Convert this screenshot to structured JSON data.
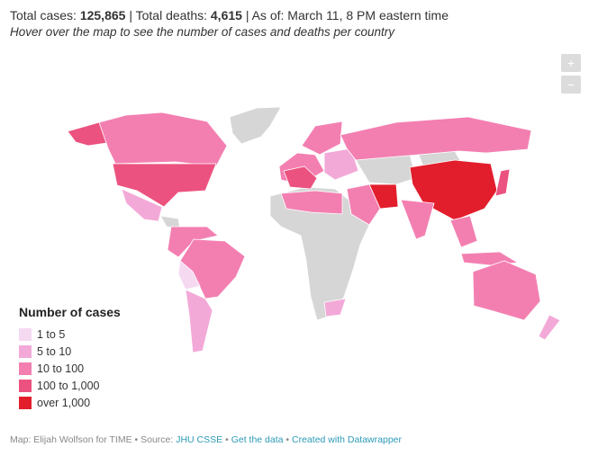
{
  "header": {
    "cases_label": "Total cases:",
    "cases": "125,865",
    "separator": "|",
    "deaths_label": "Total deaths:",
    "deaths": "4,615",
    "as_of": "As of: March 11, 8 PM eastern time",
    "subtitle": "Hover over the map to see the number of cases and deaths per country"
  },
  "zoom": {
    "in": "+",
    "out": "−"
  },
  "legend": {
    "title": "Number of cases",
    "items": [
      {
        "label": "1 to 5",
        "color": "#f5d9f1"
      },
      {
        "label": "5 to 10",
        "color": "#f3a9d8"
      },
      {
        "label": "10 to 100",
        "color": "#f37fb1"
      },
      {
        "label": "100 to 1,000",
        "color": "#ec527f"
      },
      {
        "label": "over 1,000",
        "color": "#e21d2c"
      }
    ]
  },
  "footer": {
    "credit": "Map: Elijah Wolfson for TIME",
    "dot": "•",
    "source_label": "Source:",
    "source": "JHU CSSE",
    "data_link": "Get the data",
    "made_with": "Created with Datawrapper"
  }
}
